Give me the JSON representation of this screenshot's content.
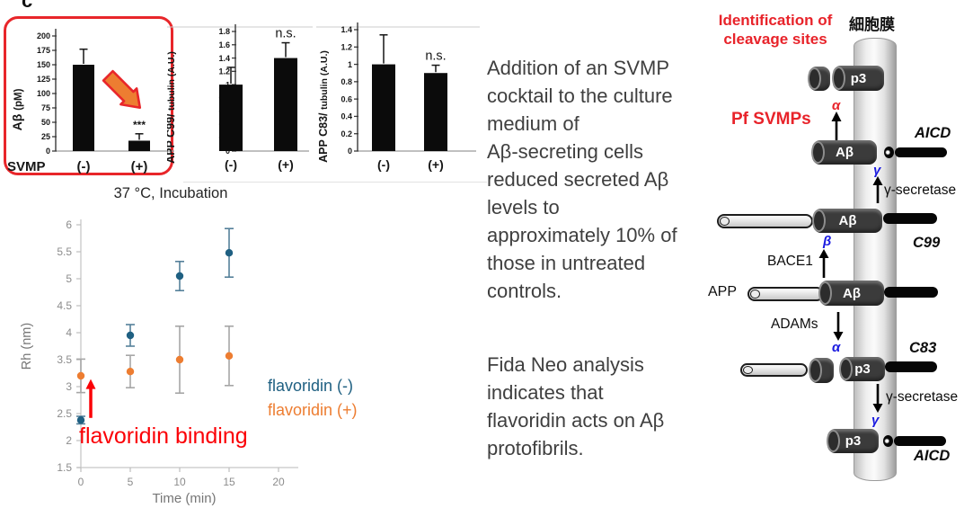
{
  "panel_label": "c",
  "colors": {
    "frame_red": "#e8262a",
    "arrow_orange": "#ED7D31",
    "series_blue": "#1f6082",
    "series_orange": "#ED7D31",
    "annotation_red": "#fb0006",
    "diagram_blue": "#1a1ae0",
    "bar_black": "#0b0b0b"
  },
  "chart_data": [
    {
      "type": "bar",
      "ylabel_main": "Aβ",
      "ylabel_sub": "(pM)",
      "ylim": [
        0,
        200
      ],
      "ytick_step": 25,
      "categories": [
        "(-)",
        "(+)"
      ],
      "values": [
        150,
        18
      ],
      "errors_up": [
        27,
        12
      ],
      "sig_label": "***",
      "sig_over": 1,
      "x_prefix": "SVMP",
      "bar_color": "#0b0b0b"
    },
    {
      "type": "bar",
      "ylabel_main": "APP C99/",
      "ylabel_sub": "tubulin (A.U.)",
      "ylim": [
        0,
        1.8
      ],
      "ytick_step": 0.2,
      "categories": [
        "(-)",
        "(+)"
      ],
      "values": [
        1.0,
        1.4
      ],
      "errors_up": [
        0.26,
        0.23
      ],
      "sig_label": "n.s.",
      "sig_over": 1,
      "bar_color": "#0b0b0b"
    },
    {
      "type": "bar",
      "ylabel_main": "APP C83/",
      "ylabel_sub": "tubulin (A.U.)",
      "ylim": [
        0,
        1.4
      ],
      "ytick_step": 0.2,
      "categories": [
        "(-)",
        "(+)"
      ],
      "values": [
        1.0,
        0.9
      ],
      "errors_up": [
        0.34,
        0.09
      ],
      "sig_label": "n.s.",
      "sig_over": 1,
      "bar_color": "#0b0b0b"
    },
    {
      "type": "scatter",
      "title": "37 °C, Incubation",
      "xlabel": "Time (min)",
      "ylabel": "Rh (nm)",
      "xlim": [
        0,
        22
      ],
      "xticks": [
        0,
        5,
        10,
        15,
        20
      ],
      "ylim": [
        1.5,
        6
      ],
      "ytick_step": 0.5,
      "grid": false,
      "legend_position": "right",
      "series": [
        {
          "name": "flavoridin (-)",
          "color": "#1f6082",
          "err_color": "#55809a",
          "x": [
            0,
            5,
            10,
            15
          ],
          "y": [
            2.38,
            3.95,
            5.05,
            5.48
          ],
          "err": [
            0.07,
            0.2,
            0.27,
            0.45
          ]
        },
        {
          "name": "flavoridin (+)",
          "color": "#ED7D31",
          "err_color": "#a6a6a6",
          "x": [
            0,
            5,
            10,
            15
          ],
          "y": [
            3.2,
            3.28,
            3.5,
            3.57
          ],
          "err": [
            0.31,
            0.3,
            0.62,
            0.55
          ]
        }
      ],
      "annotation": {
        "text": "flavoridin binding",
        "color": "#fb0006",
        "arrow_x": 1,
        "arrow_y_from": 2.42,
        "arrow_y_to": 3.14
      }
    }
  ],
  "center_text": {
    "p1": "Addition of an SVMP\ncocktail to the culture\nmedium of\nAβ-secreting cells\nreduced secreted Aβ\nlevels to\napproximately 10% of\nthose in untreated\ncontrols.",
    "p2": "Fida Neo analysis\nindicates that\nflavoridin acts on Aβ\nprotofibrils."
  },
  "diagram": {
    "heading": "Identification of\ncleavage sites",
    "membrane_label": "細胞膜",
    "pf_svmps": "Pf SVMPs",
    "abeta": "Aβ",
    "p3": "p3",
    "alpha": "α",
    "beta": "β",
    "gamma": "γ",
    "aicd_top": "AICD",
    "gamma_secretase_top": "γ-secretase",
    "c99": "C99",
    "bace1": "BACE1",
    "app": "APP",
    "adams": "ADAMs",
    "c83": "C83",
    "gamma_secretase_bottom": "γ-secretase",
    "aicd_bottom": "AICD"
  }
}
